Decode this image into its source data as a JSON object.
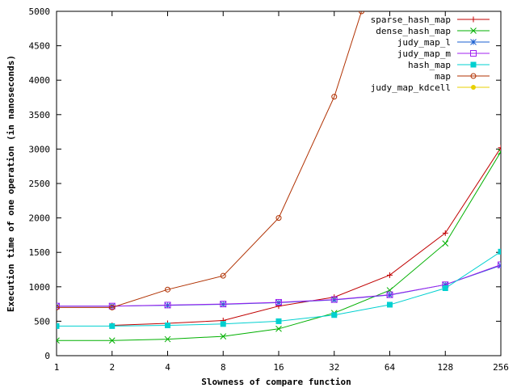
{
  "chart_data": {
    "type": "line",
    "title": "",
    "xlabel": "Slowness of compare function",
    "ylabel": "Execution time of one operation (in nanoseconds)",
    "x_scale": "log2",
    "x_ticks": [
      "1",
      "2",
      "4",
      "8",
      "16",
      "32",
      "64",
      "128",
      "256"
    ],
    "x_tick_values": [
      1,
      2,
      4,
      8,
      16,
      32,
      64,
      128,
      256
    ],
    "xlim": [
      1,
      256
    ],
    "ylim": [
      0,
      5000
    ],
    "y_ticks": [
      "0",
      "500",
      "1000",
      "1500",
      "2000",
      "2500",
      "3000",
      "3500",
      "4000",
      "4500",
      "5000"
    ],
    "y_tick_values": [
      0,
      500,
      1000,
      1500,
      2000,
      2500,
      3000,
      3500,
      4000,
      4500,
      5000
    ],
    "legend_position": "top-right",
    "grid": false,
    "series": [
      {
        "name": "sparse_hash_map",
        "color": "#c00000",
        "marker": "plus",
        "x": [
          2,
          4,
          8,
          16,
          32,
          64,
          128,
          256
        ],
        "values": [
          440,
          470,
          510,
          720,
          850,
          1170,
          1780,
          3020
        ]
      },
      {
        "name": "dense_hash_map",
        "color": "#00b000",
        "marker": "cross",
        "x": [
          1,
          2,
          4,
          8,
          16,
          32,
          64,
          128,
          256
        ],
        "values": [
          220,
          220,
          240,
          280,
          390,
          620,
          950,
          1630,
          2960
        ]
      },
      {
        "name": "judy_map_l",
        "color": "#1a5fd0",
        "marker": "star",
        "x": [
          1,
          2,
          4,
          8,
          16,
          32,
          64,
          128,
          256
        ],
        "values": [
          720,
          720,
          730,
          745,
          770,
          810,
          880,
          1030,
          1310
        ]
      },
      {
        "name": "judy_map_m",
        "color": "#a020f0",
        "marker": "square",
        "x": [
          1,
          2,
          4,
          8,
          16,
          32,
          64,
          128,
          256
        ],
        "values": [
          720,
          720,
          735,
          750,
          775,
          815,
          885,
          1030,
          1320
        ]
      },
      {
        "name": "hash_map",
        "color": "#00d0d0",
        "marker": "filled-square",
        "x": [
          1,
          2,
          4,
          8,
          16,
          32,
          64,
          128,
          256
        ],
        "values": [
          430,
          430,
          440,
          460,
          500,
          590,
          740,
          980,
          1510
        ]
      },
      {
        "name": "map",
        "color": "#b03000",
        "marker": "circle",
        "x": [
          1,
          2,
          4,
          8,
          16,
          32,
          45
        ],
        "values": [
          700,
          700,
          960,
          1160,
          2000,
          3760,
          5000
        ]
      },
      {
        "name": "judy_map_kdcell",
        "color": "#e8d000",
        "marker": "filled-circle",
        "x": [],
        "values": []
      }
    ]
  }
}
